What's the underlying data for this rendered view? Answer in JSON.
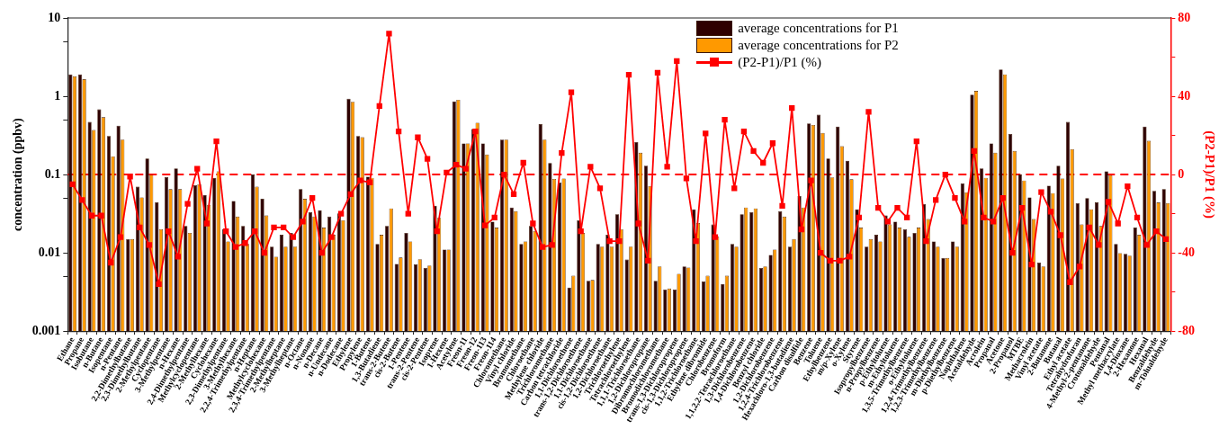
{
  "chart_data": {
    "type": "bar",
    "categories": [
      "Ethane",
      "Propane",
      "Isobutane",
      "n-Butane",
      "Isopentane",
      "n-Pentane",
      "2,2-Dimethylbutane",
      "2,3-Dimethylbutane",
      "2-Methylpentane",
      "Cyclopentane",
      "3-Methylpentane",
      "n-Hexane",
      "2,4-Dimethylpentane",
      "Methylcyclopentane",
      "2-Methylhexane",
      "Cyclohexane",
      "2,3-Dimethylpentane",
      "3-Methylhexane",
      "2,2,4-Trimethylpentane",
      "n-Heptane",
      "Methylcyclohexane",
      "2,3,4-Trimethylpentane",
      "2-Methylheptane",
      "3-Methylheptane",
      "n-Octane",
      "n-Nonane",
      "n-Decane",
      "n-Undecane",
      "n-Dodecane",
      "Ethylene",
      "Propylene",
      "1-Butene",
      "1,3-Butadiene",
      "trans-2-Butene",
      "cis-2-Butene",
      "1-Pentene",
      "trans-2-Pentene",
      "cis-2-Pentene",
      "Isoprene",
      "1-Hexene",
      "Acetylene",
      "Freon-11",
      "Freon-12",
      "Freon-113",
      "Freon-114",
      "Chloromethane",
      "Vinyl chloride",
      "Bromomethane",
      "Chloroethane",
      "Methylene chloride",
      "Trichloromethane",
      "Carbon tetrachloride",
      "1,1-Dichloroethene",
      "trans-1,2-Dichloroethene",
      "1,1-Dichloroethane",
      "cis-1,2-Dichloroethene",
      "1,2-Dichloroethane",
      "Trichloroethylene",
      "Tetrachloroethylene",
      "1,1,1-Trichloroethane",
      "1,2-Dichloropropane",
      "Dibromochloromethane",
      "Bromodichloromethane",
      "trans-1,3-Dichloropropene",
      "cis-1,3-Dichloropropene",
      "1,1,2-Trichloroethane",
      "Ethylene dibromide",
      "Chlorobenzene",
      "Bromoform",
      "1,1,2,2-Tetrachloroethane",
      "1,3-Dichlorobenzene",
      "1,4-Dichlorobenzene",
      "Benzyl chloride",
      "1,2-Dichlorobenzene",
      "1,2,4-Trichlorobenzene",
      "Hexachloro-1,3-butadiene",
      "Carbon disulfide",
      "Benzene",
      "Toluene",
      "Ethylbenzene",
      "m/p-Xylene",
      "o-Xylene",
      "Styrene",
      "Isopropylbenzene",
      "n-Propylbenzene",
      "p-Ethyltoluene",
      "m-Ethyltoluene",
      "1,3,5-Trimethylbenzene",
      "o-Ethyltoluene",
      "1,2,4-Trimethylbenzene",
      "1,2,3-Trimethylbenzene",
      "m-Diethylbenzene",
      "p-Diethylbenzene",
      "Naphthalene",
      "Acetaldehyde",
      "Acrolein",
      "Propanal",
      "Acetone",
      "2-Propanol",
      "MTBE",
      "Methacrolein",
      "Vinyl acetate",
      "2-Butanone",
      "Butanal",
      "Ethyl acetate",
      "Tetrahydrofuran",
      "4-Methyl-2-pentanone",
      "Crotonaldehyde",
      "Pentanal",
      "Methyl methacrylate",
      "1,4-Dioxane",
      "2-Hexanone",
      "Hexanal",
      "Benzaldehyde",
      "m-Tolualdehyde"
    ],
    "series": [
      {
        "name": "average concentrations for P1",
        "color": "#2e0000",
        "values": [
          1.9,
          1.9,
          0.47,
          0.68,
          0.31,
          0.42,
          0.015,
          0.07,
          0.16,
          0.044,
          0.093,
          0.12,
          0.022,
          0.073,
          0.055,
          0.091,
          0.02,
          0.046,
          0.022,
          0.1,
          0.049,
          0.012,
          0.017,
          0.018,
          0.065,
          0.033,
          0.035,
          0.029,
          0.032,
          0.93,
          0.31,
          0.094,
          0.013,
          0.022,
          0.0072,
          0.018,
          0.0071,
          0.0064,
          0.04,
          0.011,
          0.86,
          0.25,
          0.38,
          0.25,
          0.025,
          0.28,
          0.038,
          0.013,
          0.022,
          0.44,
          0.14,
          0.079,
          0.0036,
          0.026,
          0.0044,
          0.013,
          0.017,
          0.031,
          0.0082,
          0.26,
          0.13,
          0.0044,
          0.0034,
          0.0034,
          0.0067,
          0.036,
          0.0043,
          0.023,
          0.004,
          0.013,
          0.031,
          0.033,
          0.0064,
          0.0094,
          0.034,
          0.012,
          0.053,
          0.45,
          0.58,
          0.16,
          0.41,
          0.15,
          0.036,
          0.012,
          0.017,
          0.03,
          0.025,
          0.02,
          0.018,
          0.042,
          0.014,
          0.0086,
          0.014,
          0.077,
          1.05,
          0.12,
          0.25,
          2.2,
          0.33,
          0.1,
          0.051,
          0.0075,
          0.072,
          0.13,
          0.47,
          0.043,
          0.05,
          0.044,
          0.11,
          0.013,
          0.0097,
          0.021,
          0.41,
          0.062,
          0.065
        ]
      },
      {
        "name": "average concentrations for P2",
        "color": "#ff9900",
        "values": [
          1.8,
          1.65,
          0.37,
          0.54,
          0.17,
          0.28,
          0.015,
          0.051,
          0.099,
          0.02,
          0.065,
          0.065,
          0.018,
          0.075,
          0.041,
          0.11,
          0.014,
          0.029,
          0.013,
          0.07,
          0.03,
          0.0089,
          0.012,
          0.012,
          0.049,
          0.029,
          0.021,
          0.017,
          0.026,
          0.85,
          0.3,
          0.091,
          0.017,
          0.037,
          0.0087,
          0.014,
          0.0083,
          0.0069,
          0.028,
          0.011,
          0.9,
          0.25,
          0.46,
          0.18,
          0.021,
          0.28,
          0.034,
          0.014,
          0.019,
          0.28,
          0.088,
          0.089,
          0.0051,
          0.018,
          0.0045,
          0.012,
          0.012,
          0.02,
          0.012,
          0.19,
          0.071,
          0.0067,
          0.0035,
          0.0054,
          0.0065,
          0.024,
          0.0051,
          0.016,
          0.0051,
          0.012,
          0.038,
          0.037,
          0.0067,
          0.011,
          0.029,
          0.015,
          0.038,
          0.43,
          0.34,
          0.092,
          0.23,
          0.087,
          0.021,
          0.015,
          0.014,
          0.023,
          0.021,
          0.016,
          0.021,
          0.027,
          0.012,
          0.0086,
          0.012,
          0.059,
          1.17,
          0.091,
          0.19,
          1.9,
          0.2,
          0.084,
          0.027,
          0.0067,
          0.058,
          0.089,
          0.21,
          0.023,
          0.036,
          0.022,
          0.098,
          0.0099,
          0.0092,
          0.017,
          0.27,
          0.044,
          0.043
        ]
      },
      {
        "name": "(P2-P1)/P1 (%)",
        "type": "line",
        "axis": "y2",
        "color": "#ff0000",
        "values": [
          -5,
          -13,
          -21,
          -21,
          -45,
          -32,
          -1,
          -27,
          -36,
          -56,
          -29,
          -42,
          -15,
          3,
          -25,
          17,
          -29,
          -37,
          -35,
          -29,
          -40,
          -27,
          -27,
          -32,
          -24,
          -12,
          -40,
          -32,
          -20,
          -10,
          -3,
          -4,
          35,
          72,
          22,
          -20,
          19,
          8,
          -29,
          1,
          5,
          3,
          22,
          -26,
          -22,
          0,
          -10,
          6,
          -25,
          -37,
          -36,
          11,
          42,
          -29,
          4,
          -7,
          -34,
          -34,
          51,
          -25,
          -44,
          52,
          4,
          58,
          -2,
          -34,
          21,
          -32,
          28,
          -7,
          22,
          12,
          6,
          16,
          -16,
          34,
          -28,
          -3,
          -40,
          -44,
          -44,
          -42,
          -22,
          32,
          -17,
          -24,
          -17,
          -22,
          17,
          -34,
          -13,
          0,
          -12,
          -24,
          12,
          -22,
          -24,
          -12,
          -40,
          -17,
          -46,
          -9,
          -19,
          -31,
          -55,
          -47,
          -27,
          -36,
          -14,
          -25,
          -6,
          -22,
          -36,
          -29,
          -33
        ]
      }
    ],
    "ylabel": "concentration (ppbv)",
    "y2label": "(P2-P1)/P1 (%)",
    "log": "y",
    "ylim": [
      0.001,
      10
    ],
    "yticks": [
      0.001,
      {
        "value": 0.005,
        "label": null
      },
      0.01,
      {
        "value": 0.05,
        "label": null
      },
      0.1,
      {
        "value": 0.5,
        "label": null
      },
      1,
      {
        "value": 5,
        "label": null
      },
      10
    ],
    "y2lim": [
      -80,
      80
    ],
    "y2ticks": [
      -80,
      {
        "value": -60,
        "label": null
      },
      -40,
      {
        "value": -20,
        "label": null
      },
      0,
      {
        "value": 20,
        "label": null
      },
      40,
      {
        "value": 60,
        "label": null
      },
      80
    ],
    "ref_lines": [
      {
        "axis": "y2",
        "value": 0,
        "color": "#ff0000",
        "line_style": "dashed"
      }
    ],
    "legend": "top",
    "marker": "square",
    "line_style": "solid"
  }
}
